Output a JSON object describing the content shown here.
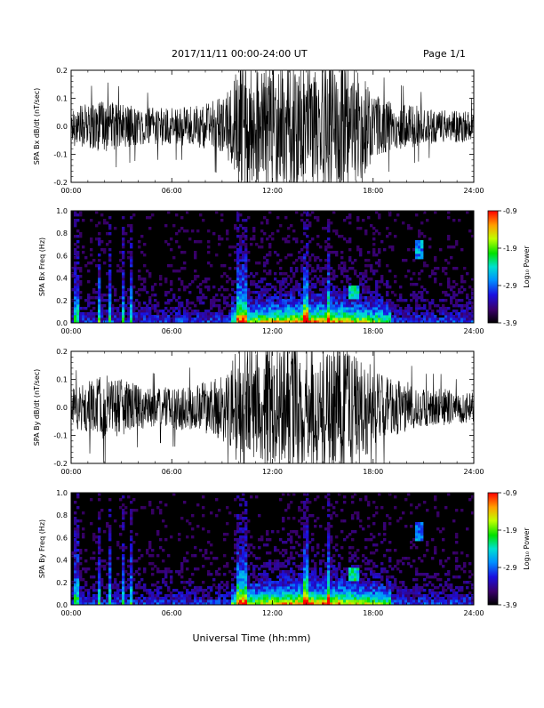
{
  "header": {
    "date_range": "2017/11/11  00:00-24:00 UT",
    "page": "Page 1/1"
  },
  "footer": {
    "xlabel": "Universal Time (hh:mm)"
  },
  "colors": {
    "trace": "#000000",
    "spectrogram_background": "#000000"
  },
  "colorbar": {
    "label": "Log₁₀ Power",
    "ticks": [
      "-0.9",
      "-1.9",
      "-2.9",
      "-3.9"
    ],
    "range": [
      -3.9,
      -0.9
    ]
  },
  "chart_data": [
    {
      "type": "line",
      "ylabel": "SPA Bx dB/dt (nT/sec)",
      "xlim": [
        0,
        24
      ],
      "ylim": [
        -0.2,
        0.2
      ],
      "x_ticks": [
        "00:00",
        "06:00",
        "12:00",
        "18:00",
        "24:00"
      ],
      "y_ticks": [
        "0.2",
        "0.1",
        "0.0",
        "-0.1",
        "-0.2"
      ],
      "amplitude_envelope": {
        "hours": [
          0,
          1,
          2,
          3,
          4,
          5,
          6,
          7,
          8,
          9,
          9.5,
          10,
          11,
          12,
          13,
          14,
          15,
          16,
          17,
          17.5,
          18,
          19,
          20,
          21,
          22,
          23,
          24
        ],
        "amplitude": [
          0.06,
          0.07,
          0.08,
          0.07,
          0.06,
          0.06,
          0.06,
          0.06,
          0.07,
          0.09,
          0.12,
          0.2,
          0.2,
          0.2,
          0.2,
          0.2,
          0.2,
          0.2,
          0.2,
          0.15,
          0.1,
          0.08,
          0.07,
          0.06,
          0.05,
          0.05,
          0.05
        ]
      }
    },
    {
      "type": "heatmap",
      "ylabel": "SPA Bx Freq (Hz)",
      "xlim": [
        0,
        24
      ],
      "ylim": [
        0,
        1.0
      ],
      "x_ticks": [
        "00:00",
        "06:00",
        "12:00",
        "18:00",
        "24:00"
      ],
      "y_ticks": [
        "1.0",
        "0.8",
        "0.6",
        "0.4",
        "0.2",
        "0.0"
      ],
      "colorbar_label": "Log₁₀ Power",
      "colorbar_ticks": [
        "-0.9",
        "-1.9",
        "-2.9",
        "-3.9"
      ],
      "clim": [
        -3.9,
        -0.9
      ],
      "bright_bursts_hours": [
        0.3,
        1.7,
        2.3,
        3.1,
        3.6,
        10.0,
        10.3,
        14.0,
        15.3
      ],
      "bright_patches": [
        {
          "hours": [
            16.5,
            17.2
          ],
          "freq_hz": [
            0.25,
            0.3
          ]
        },
        {
          "hours": [
            20.5,
            21.0
          ],
          "freq_hz": [
            0.6,
            0.7
          ]
        }
      ]
    },
    {
      "type": "line",
      "ylabel": "SPA By dB/dt (nT/sec)",
      "xlim": [
        0,
        24
      ],
      "ylim": [
        -0.2,
        0.2
      ],
      "x_ticks": [
        "00:00",
        "06:00",
        "12:00",
        "18:00",
        "24:00"
      ],
      "y_ticks": [
        "0.2",
        "0.1",
        "0.0",
        "-0.1",
        "-0.2"
      ],
      "amplitude_envelope": {
        "hours": [
          0,
          1,
          2,
          3,
          4,
          5,
          6,
          7,
          8,
          9,
          9.5,
          10,
          11,
          12,
          13,
          14,
          15,
          16,
          17,
          17.5,
          18,
          19,
          20,
          21,
          22,
          23,
          24
        ],
        "amplitude": [
          0.06,
          0.08,
          0.1,
          0.09,
          0.07,
          0.06,
          0.07,
          0.07,
          0.08,
          0.1,
          0.14,
          0.2,
          0.2,
          0.2,
          0.2,
          0.2,
          0.2,
          0.2,
          0.2,
          0.16,
          0.12,
          0.09,
          0.08,
          0.06,
          0.06,
          0.05,
          0.05
        ]
      }
    },
    {
      "type": "heatmap",
      "ylabel": "SPA By Freq (Hz)",
      "xlim": [
        0,
        24
      ],
      "ylim": [
        0,
        1.0
      ],
      "x_ticks": [
        "00:00",
        "06:00",
        "12:00",
        "18:00",
        "24:00"
      ],
      "y_ticks": [
        "1.0",
        "0.8",
        "0.6",
        "0.4",
        "0.2",
        "0.0"
      ],
      "colorbar_label": "Log₁₀ Power",
      "colorbar_ticks": [
        "-0.9",
        "-1.9",
        "-2.9",
        "-3.9"
      ],
      "clim": [
        -3.9,
        -0.9
      ],
      "bright_bursts_hours": [
        0.3,
        1.7,
        2.3,
        3.1,
        3.6,
        10.0,
        10.3,
        14.0,
        15.3
      ],
      "bright_patches": [
        {
          "hours": [
            16.5,
            17.2
          ],
          "freq_hz": [
            0.25,
            0.3
          ]
        },
        {
          "hours": [
            20.5,
            21.0
          ],
          "freq_hz": [
            0.6,
            0.7
          ]
        }
      ]
    }
  ]
}
